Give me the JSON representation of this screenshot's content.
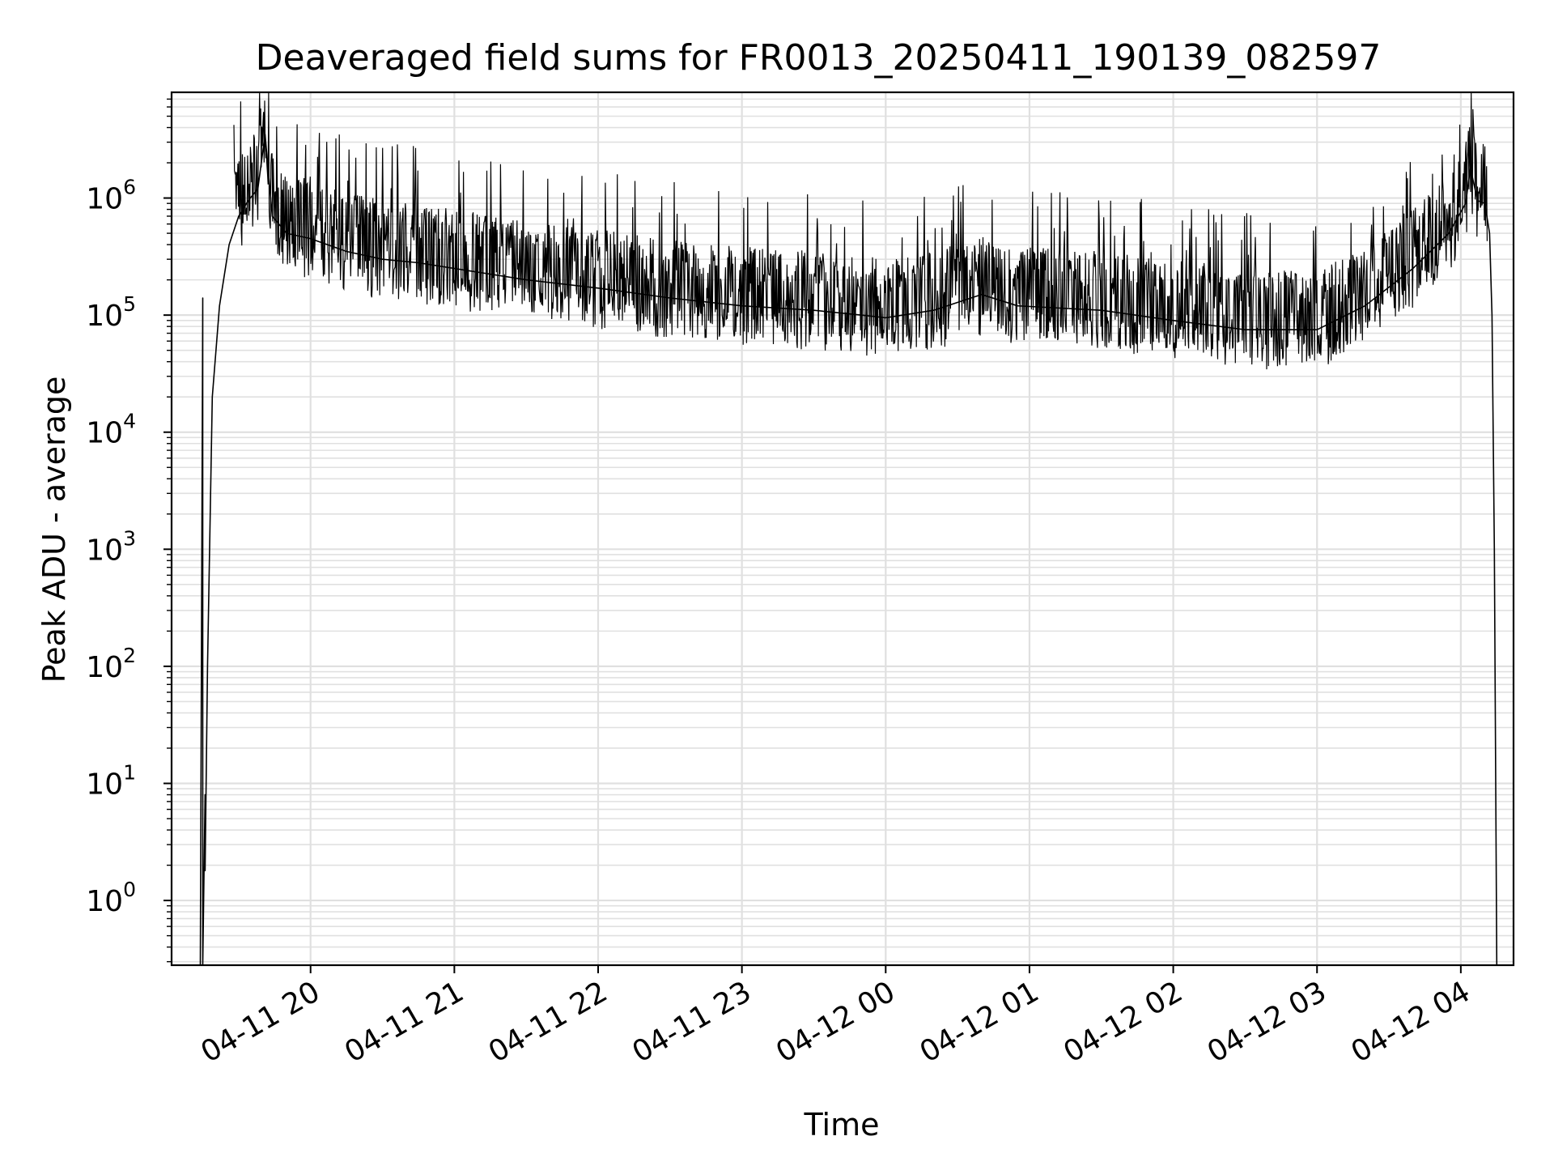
{
  "chart_data": {
    "type": "line",
    "title": "Deaveraged field sums for FR0013_20250411_190139_082597",
    "xlabel": "Time",
    "ylabel": "Peak ADU - average",
    "yscale": "log",
    "ylim": [
      0.28,
      8000000
    ],
    "xlim": [
      "2025-04-11 19:02",
      "2025-04-12 04:22"
    ],
    "grid": true,
    "line_color": "#000000",
    "grid_color": "#e0e0e0",
    "x_ticks": [
      {
        "t": "2025-04-11 20:00",
        "label": "04-11 20"
      },
      {
        "t": "2025-04-11 21:00",
        "label": "04-11 21"
      },
      {
        "t": "2025-04-11 22:00",
        "label": "04-11 22"
      },
      {
        "t": "2025-04-11 23:00",
        "label": "04-11 23"
      },
      {
        "t": "2025-04-12 00:00",
        "label": "04-12 00"
      },
      {
        "t": "2025-04-12 01:00",
        "label": "04-12 01"
      },
      {
        "t": "2025-04-12 02:00",
        "label": "04-12 02"
      },
      {
        "t": "2025-04-12 03:00",
        "label": "04-12 03"
      },
      {
        "t": "2025-04-12 04:00",
        "label": "04-12 04"
      }
    ],
    "y_ticks": [
      {
        "value": 1,
        "base": "10",
        "exp": "0"
      },
      {
        "value": 10,
        "base": "10",
        "exp": "1"
      },
      {
        "value": 100,
        "base": "10",
        "exp": "2"
      },
      {
        "value": 1000,
        "base": "10",
        "exp": "3"
      },
      {
        "value": 10000,
        "base": "10",
        "exp": "4"
      },
      {
        "value": 100000,
        "base": "10",
        "exp": "5"
      },
      {
        "value": 1000000,
        "base": "10",
        "exp": "6"
      }
    ],
    "series": [
      {
        "points": [
          [
            "2025-04-11 19:14",
            0.2
          ],
          [
            "2025-04-11 19:15",
            140000
          ],
          [
            "2025-04-11 19:15",
            0.2
          ],
          [
            "2025-04-11 19:16",
            8
          ],
          [
            "2025-04-11 19:16",
            1.8
          ],
          [
            "2025-04-11 19:17",
            100
          ],
          [
            "2025-04-11 19:19",
            20000
          ],
          [
            "2025-04-11 19:22",
            120000
          ],
          [
            "2025-04-11 19:26",
            400000
          ],
          [
            "2025-04-11 19:30",
            700000
          ],
          [
            "2025-04-11 19:34",
            950000
          ],
          [
            "2025-04-11 19:38",
            1200000
          ],
          [
            "2025-04-11 19:41",
            3500000
          ],
          [
            "2025-04-11 19:44",
            700000
          ],
          [
            "2025-04-11 19:50",
            500000
          ],
          [
            "2025-04-11 20:00",
            450000
          ],
          [
            "2025-04-11 20:15",
            350000
          ],
          [
            "2025-04-11 20:30",
            300000
          ],
          [
            "2025-04-11 20:45",
            280000
          ],
          [
            "2025-04-11 21:00",
            250000
          ],
          [
            "2025-04-11 21:30",
            200000
          ],
          [
            "2025-04-11 22:00",
            170000
          ],
          [
            "2025-04-11 22:30",
            140000
          ],
          [
            "2025-04-11 23:00",
            120000
          ],
          [
            "2025-04-11 23:30",
            110000
          ],
          [
            "2025-04-11 23:50",
            100000
          ],
          [
            "2025-04-12 00:00",
            95000
          ],
          [
            "2025-04-12 00:20",
            110000
          ],
          [
            "2025-04-12 00:40",
            150000
          ],
          [
            "2025-04-12 00:55",
            120000
          ],
          [
            "2025-04-12 01:30",
            110000
          ],
          [
            "2025-04-12 02:00",
            90000
          ],
          [
            "2025-04-12 02:30",
            75000
          ],
          [
            "2025-04-12 03:00",
            75000
          ],
          [
            "2025-04-12 03:20",
            120000
          ],
          [
            "2025-04-12 03:40",
            250000
          ],
          [
            "2025-04-12 03:55",
            500000
          ],
          [
            "2025-04-12 04:02",
            900000
          ],
          [
            "2025-04-12 04:04",
            1800000
          ],
          [
            "2025-04-12 04:07",
            950000
          ],
          [
            "2025-04-12 04:10",
            900000
          ],
          [
            "2025-04-12 04:12",
            500000
          ],
          [
            "2025-04-12 04:13",
            100000
          ],
          [
            "2025-04-12 04:14",
            1000
          ],
          [
            "2025-04-12 04:15",
            0.2
          ]
        ]
      }
    ]
  }
}
